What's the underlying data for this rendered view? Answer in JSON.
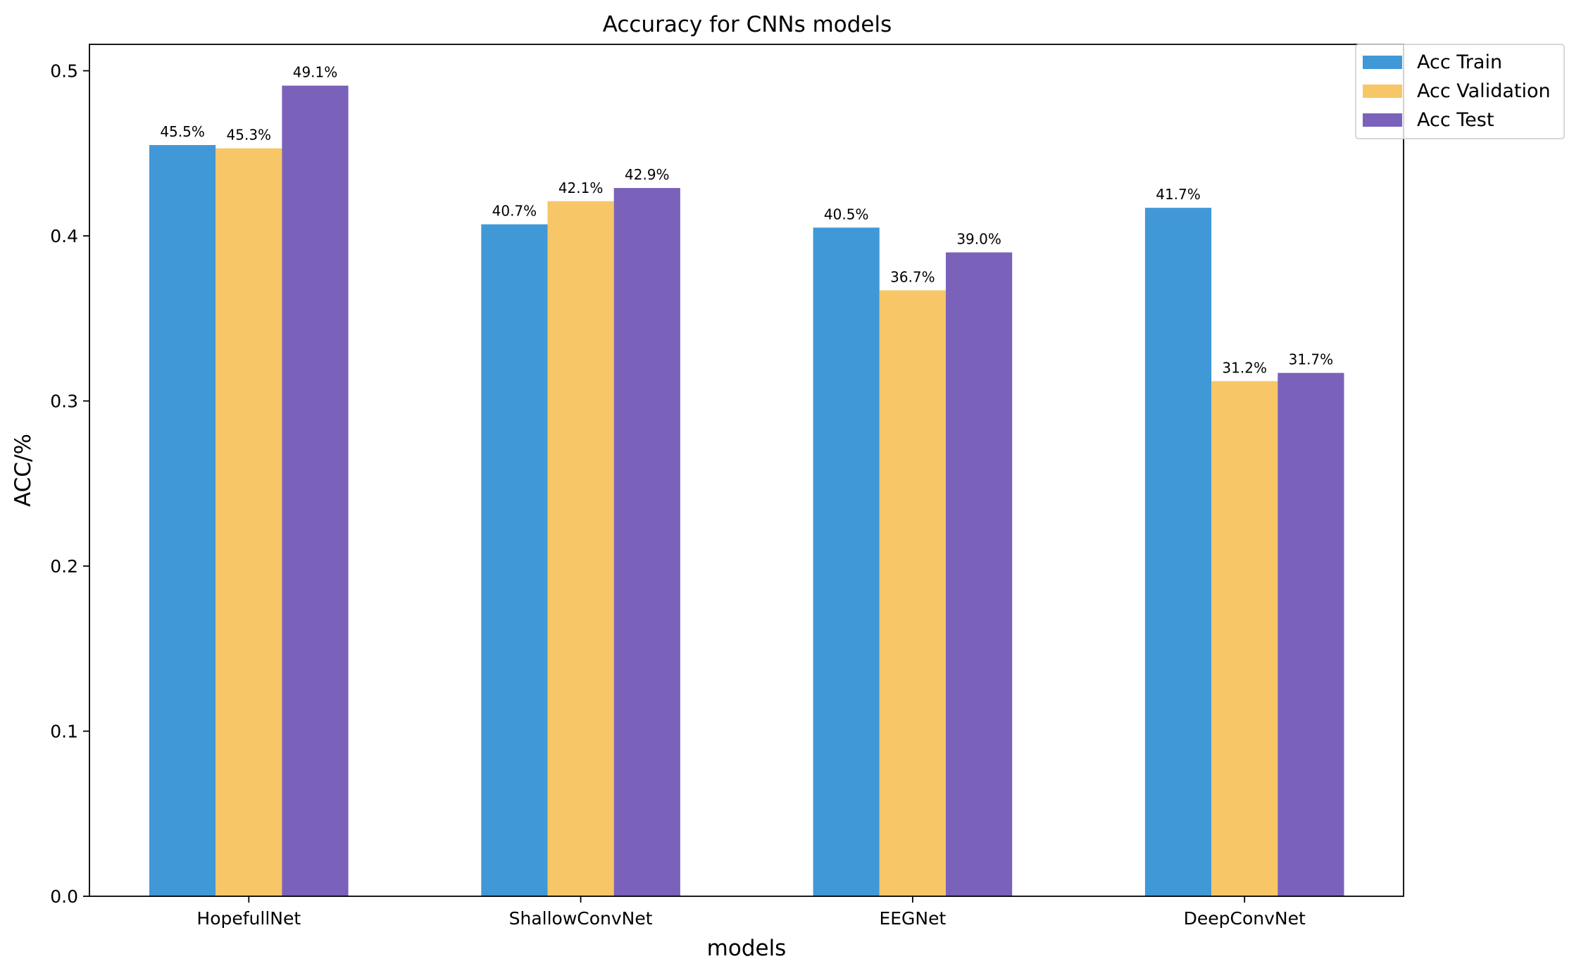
{
  "chart_data": {
    "type": "bar",
    "title": "Accuracy for CNNs models",
    "xlabel": "models",
    "ylabel": "ACC/%",
    "categories": [
      "HopefullNet",
      "ShallowConvNet",
      "EEGNet",
      "DeepConvNet"
    ],
    "ylim": [
      0,
      0.516
    ],
    "yticks": [
      "0.0",
      "0.1",
      "0.2",
      "0.3",
      "0.4",
      "0.5"
    ],
    "ytick_values": [
      0.0,
      0.1,
      0.2,
      0.3,
      0.4,
      0.5
    ],
    "legend_position": "top-right",
    "grid": false,
    "series": [
      {
        "name": "Acc Train",
        "color": "#4198d6",
        "values": [
          0.455,
          0.407,
          0.405,
          0.417
        ],
        "labels": [
          "45.5%",
          "40.7%",
          "40.5%",
          "41.7%"
        ]
      },
      {
        "name": "Acc Validation",
        "color": "#f6c667",
        "values": [
          0.453,
          0.421,
          0.367,
          0.312
        ],
        "labels": [
          "45.3%",
          "42.1%",
          "36.7%",
          "31.2%"
        ]
      },
      {
        "name": "Acc Test",
        "color": "#7a62bb",
        "values": [
          0.491,
          0.429,
          0.39,
          0.317
        ],
        "labels": [
          "49.1%",
          "42.9%",
          "39.0%",
          "31.7%"
        ]
      }
    ]
  }
}
